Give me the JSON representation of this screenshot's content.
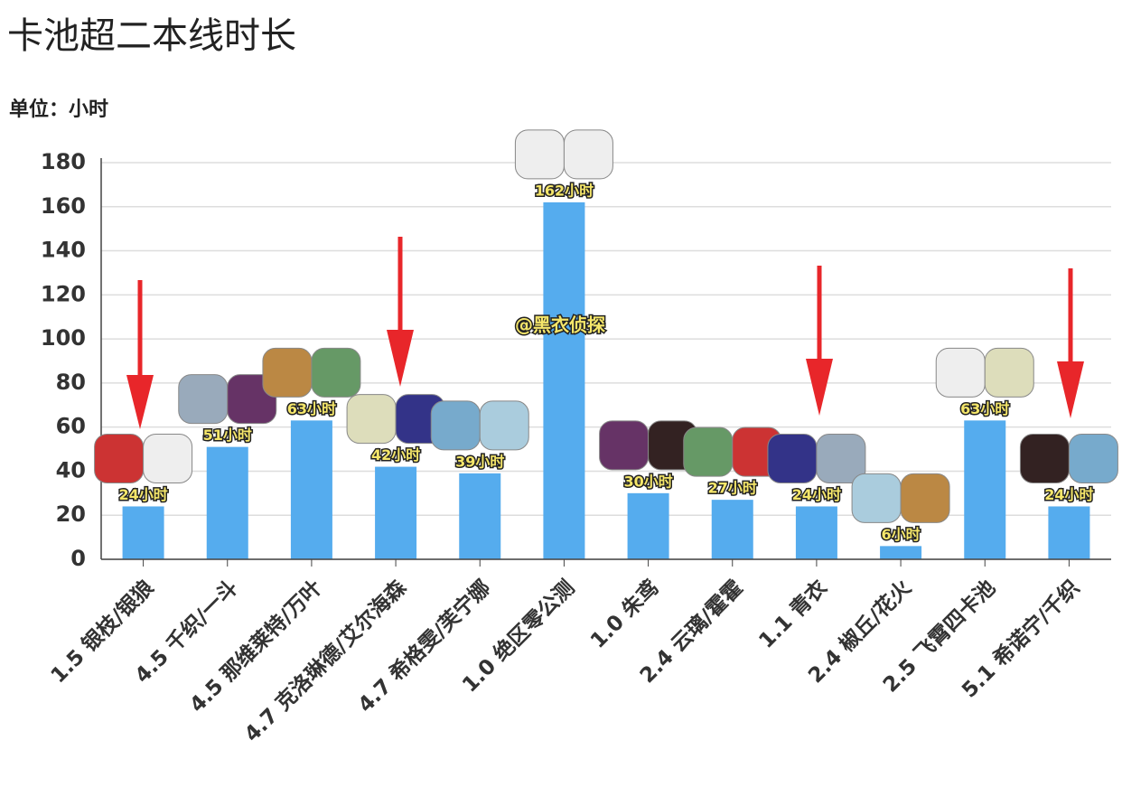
{
  "chart_data": {
    "type": "bar",
    "title": "卡池超二本线时长",
    "subtitle": "单位：小时",
    "annotation": "@黑衣侦探",
    "categories": [
      "1.5 银枝/银狼",
      "4.5 千织/一斗",
      "4.5 那维莱特/万叶",
      "4.7 克洛琳德/艾尔海森",
      "4.7 希格雯/芙宁娜",
      "1.0 绝区零公测",
      "1.0 朱鸢",
      "2.4 云璃/霍霍",
      "1.1 青衣",
      "2.4 椒丘/花火",
      "2.5 飞霄四卡池",
      "5.1 希诺宁/千织"
    ],
    "values": [
      24,
      51,
      63,
      42,
      39,
      162,
      30,
      27,
      24,
      6,
      63,
      24
    ],
    "value_labels": [
      "24小时",
      "51小时",
      "63小时",
      "42小时",
      "39小时",
      "162小时",
      "30小时",
      "27小时",
      "24小时",
      "6小时",
      "63小时",
      "24小时"
    ],
    "color": "#55acee",
    "ylim": [
      0,
      180
    ],
    "yticks": [
      0,
      20,
      40,
      60,
      80,
      100,
      120,
      140,
      160,
      180
    ],
    "grid": true
  }
}
